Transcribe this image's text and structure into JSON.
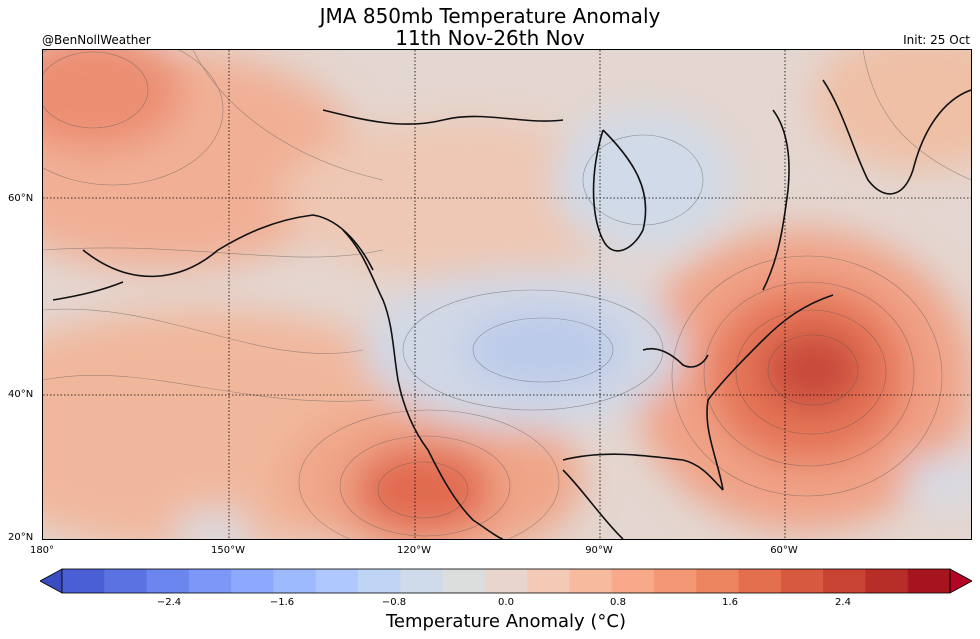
{
  "header": {
    "title_line1": "JMA 850mb Temperature Anomaly",
    "title_line2": "11th Nov-26th Nov",
    "credit": "@BenNollWeather",
    "init": "Init: 25 Oct"
  },
  "map": {
    "lat_labels": [
      "60°N",
      "40°N",
      "20°N"
    ],
    "lon_labels": [
      "180°",
      "150°W",
      "120°W",
      "90°W",
      "60°W"
    ],
    "background_color": "#e4d6d0",
    "anomaly_regions": [
      {
        "name": "northeast-atlantic-warm",
        "anomaly": 2.6,
        "color": "#c83c34"
      },
      {
        "name": "baja-warm",
        "anomaly": 2.0,
        "color": "#e16a50"
      },
      {
        "name": "alaska-bering-warm",
        "anomaly": 1.6,
        "color": "#ee8d70"
      },
      {
        "name": "central-us-cool",
        "anomaly": -0.8,
        "color": "#bccbea"
      },
      {
        "name": "hudson-bay-cool",
        "anomaly": -0.2,
        "color": "#d0dae8"
      }
    ]
  },
  "colorbar": {
    "label": "Temperature Anomaly (°C)",
    "ticks": [
      "−2.4",
      "−1.6",
      "−0.8",
      "0.0",
      "0.8",
      "1.6",
      "2.4"
    ],
    "colors": [
      "#3a4cc0",
      "#4a5fd3",
      "#5b73e2",
      "#6b86ef",
      "#7c97f8",
      "#8da9fd",
      "#9ebaff",
      "#afc8fd",
      "#c0d4f5",
      "#cfdbea",
      "#dcdddd",
      "#e8d6cc",
      "#f2cab6",
      "#f6bb9f",
      "#f7a989",
      "#f49774",
      "#ed8460",
      "#e36f4f",
      "#d75a40",
      "#c84333",
      "#b72d27",
      "#a6151f",
      "#b40426"
    ],
    "end_low": "#3b4cc0",
    "end_high": "#b40426"
  }
}
